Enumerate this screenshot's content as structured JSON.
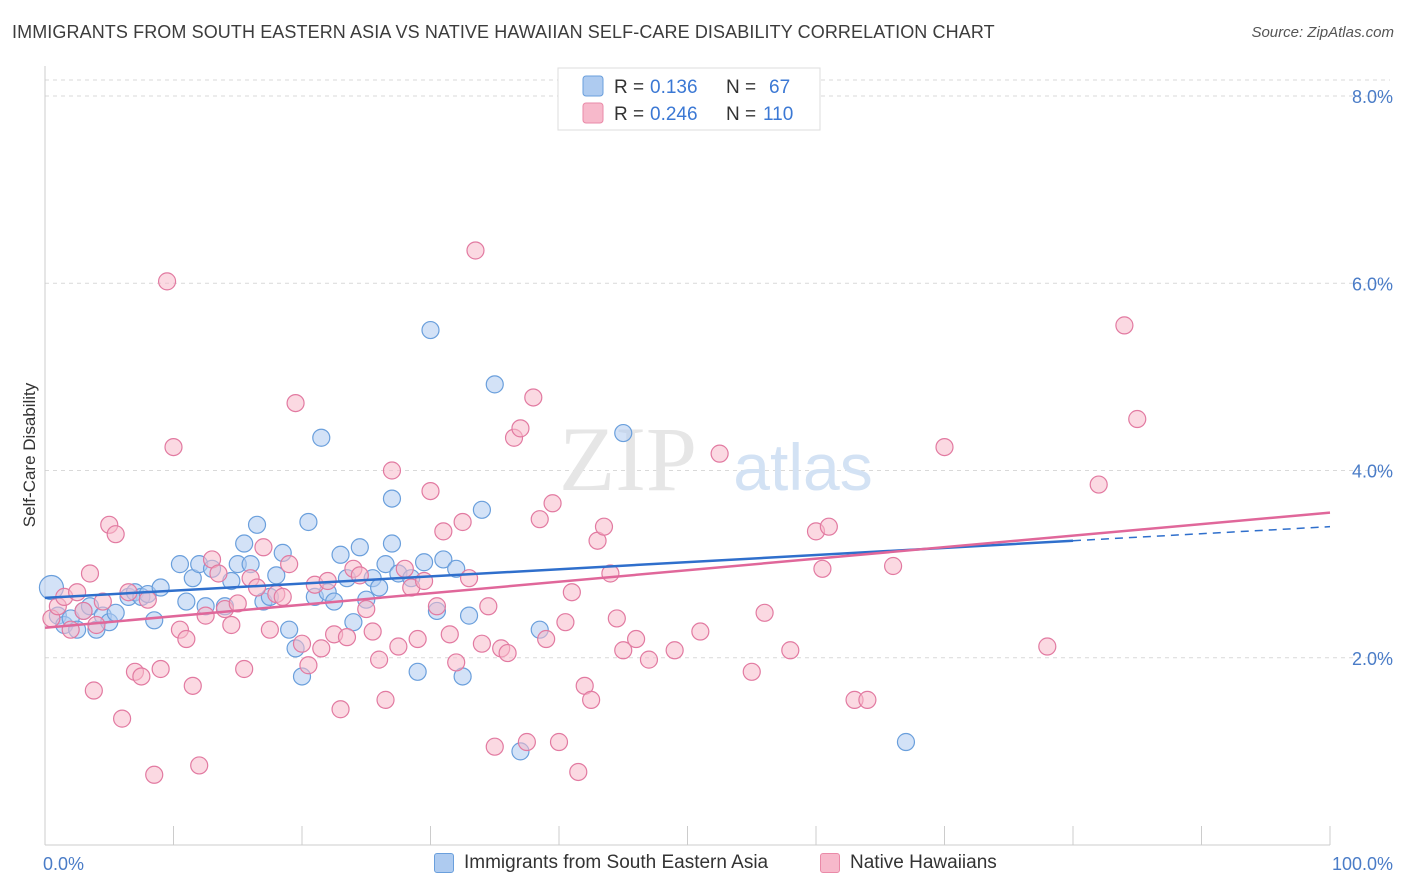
{
  "title": "IMMIGRANTS FROM SOUTH EASTERN ASIA VS NATIVE HAWAIIAN SELF-CARE DISABILITY CORRELATION CHART",
  "source": "Source: ZipAtlas.com",
  "watermark": {
    "zip": "ZIP",
    "atlas": "atlas"
  },
  "legend_top": [
    {
      "r_label": "R =",
      "r_value": "0.136",
      "n_label": "N =",
      "n_value": "67",
      "fill": "#aecbf0",
      "stroke": "#6a9fdc"
    },
    {
      "r_label": "R =",
      "r_value": "0.246",
      "n_label": "N =",
      "n_value": "110",
      "fill": "#f7b9cb",
      "stroke": "#ea8aa8"
    }
  ],
  "legend_bottom": [
    {
      "label": "Immigrants from South Eastern Asia",
      "fill": "#aecbf0",
      "stroke": "#6a9fdc"
    },
    {
      "label": "Native Hawaiians",
      "fill": "#f7b9cb",
      "stroke": "#ea8aa8"
    }
  ],
  "chart_data": {
    "type": "scatter",
    "title": "IMMIGRANTS FROM SOUTH EASTERN ASIA VS NATIVE HAWAIIAN SELF-CARE DISABILITY CORRELATION CHART",
    "xlabel": "",
    "ylabel": "Self-Care Disability",
    "xlim": [
      0,
      100
    ],
    "ylim": [
      0,
      8.0
    ],
    "x_tick_labels": [
      "0.0%",
      "100.0%"
    ],
    "y_ticks": [
      2.0,
      4.0,
      6.0,
      8.0
    ],
    "y_tick_labels": [
      "2.0%",
      "4.0%",
      "6.0%",
      "8.0%"
    ],
    "grid": true,
    "legend_position": "top-center",
    "series": [
      {
        "name": "Immigrants from South Eastern Asia",
        "color": "#6a9fdc",
        "fill": "#aecbf0",
        "trend": {
          "x0": 0,
          "y0": 2.64,
          "x1": 80,
          "y1": 3.25,
          "dash_to_x": 100,
          "dash_to_y": 3.4
        },
        "points": [
          [
            0.5,
            2.75
          ],
          [
            1.0,
            2.45
          ],
          [
            1.5,
            2.35
          ],
          [
            2.0,
            2.42
          ],
          [
            2.5,
            2.3
          ],
          [
            3.0,
            2.5
          ],
          [
            3.5,
            2.55
          ],
          [
            4.0,
            2.3
          ],
          [
            4.5,
            2.45
          ],
          [
            5.0,
            2.38
          ],
          [
            5.5,
            2.48
          ],
          [
            6.5,
            2.65
          ],
          [
            7.0,
            2.7
          ],
          [
            7.5,
            2.65
          ],
          [
            8.0,
            2.68
          ],
          [
            8.5,
            2.4
          ],
          [
            9.0,
            2.75
          ],
          [
            10.5,
            3.0
          ],
          [
            11.0,
            2.6
          ],
          [
            11.5,
            2.85
          ],
          [
            12.0,
            3.0
          ],
          [
            12.5,
            2.55
          ],
          [
            13.0,
            2.95
          ],
          [
            14.0,
            2.55
          ],
          [
            14.5,
            2.82
          ],
          [
            15.0,
            3.0
          ],
          [
            15.5,
            3.22
          ],
          [
            16.0,
            3.0
          ],
          [
            16.5,
            3.42
          ],
          [
            17.0,
            2.6
          ],
          [
            17.5,
            2.65
          ],
          [
            18.0,
            2.88
          ],
          [
            18.5,
            3.12
          ],
          [
            19.0,
            2.3
          ],
          [
            19.5,
            2.1
          ],
          [
            20.0,
            1.8
          ],
          [
            20.5,
            3.45
          ],
          [
            21.0,
            2.65
          ],
          [
            21.5,
            4.35
          ],
          [
            22.0,
            2.7
          ],
          [
            22.5,
            2.6
          ],
          [
            23.0,
            3.1
          ],
          [
            23.5,
            2.85
          ],
          [
            24.0,
            2.38
          ],
          [
            24.5,
            3.18
          ],
          [
            25.0,
            2.62
          ],
          [
            25.5,
            2.85
          ],
          [
            26.0,
            2.75
          ],
          [
            26.5,
            3.0
          ],
          [
            27.0,
            3.22
          ],
          [
            27.5,
            2.9
          ],
          [
            27.0,
            3.7
          ],
          [
            28.5,
            2.85
          ],
          [
            29.0,
            1.85
          ],
          [
            29.5,
            3.02
          ],
          [
            30.0,
            5.5
          ],
          [
            30.5,
            2.5
          ],
          [
            31.0,
            3.05
          ],
          [
            32.0,
            2.95
          ],
          [
            32.5,
            1.8
          ],
          [
            33.0,
            2.45
          ],
          [
            34.0,
            3.58
          ],
          [
            35.0,
            4.92
          ],
          [
            37.0,
            1.0
          ],
          [
            45.0,
            4.4
          ],
          [
            67.0,
            1.1
          ],
          [
            38.5,
            2.3
          ]
        ]
      },
      {
        "name": "Native Hawaiians",
        "color": "#e27aa1",
        "fill": "#f7b9cb",
        "trend": {
          "x0": 0,
          "y0": 2.32,
          "x1": 100,
          "y1": 3.55
        },
        "points": [
          [
            0.5,
            2.42
          ],
          [
            1.0,
            2.55
          ],
          [
            1.5,
            2.65
          ],
          [
            2.0,
            2.3
          ],
          [
            2.5,
            2.7
          ],
          [
            3.0,
            2.5
          ],
          [
            3.5,
            2.9
          ],
          [
            3.8,
            1.65
          ],
          [
            4.0,
            2.35
          ],
          [
            4.5,
            2.6
          ],
          [
            5.0,
            3.42
          ],
          [
            5.5,
            3.32
          ],
          [
            6.0,
            1.35
          ],
          [
            6.5,
            2.7
          ],
          [
            7.0,
            1.85
          ],
          [
            7.5,
            1.8
          ],
          [
            8.0,
            2.62
          ],
          [
            8.5,
            0.75
          ],
          [
            9.0,
            1.88
          ],
          [
            9.5,
            6.02
          ],
          [
            10.0,
            4.25
          ],
          [
            10.5,
            2.3
          ],
          [
            11.0,
            2.2
          ],
          [
            11.5,
            1.7
          ],
          [
            12.0,
            0.85
          ],
          [
            12.5,
            2.45
          ],
          [
            13.0,
            3.05
          ],
          [
            13.5,
            2.9
          ],
          [
            14.0,
            2.52
          ],
          [
            14.5,
            2.35
          ],
          [
            15.0,
            2.58
          ],
          [
            15.5,
            1.88
          ],
          [
            16.0,
            2.85
          ],
          [
            16.5,
            2.75
          ],
          [
            17.0,
            3.18
          ],
          [
            17.5,
            2.3
          ],
          [
            18.0,
            2.68
          ],
          [
            18.5,
            2.65
          ],
          [
            19.0,
            3.0
          ],
          [
            19.5,
            4.72
          ],
          [
            20.0,
            2.15
          ],
          [
            20.5,
            1.92
          ],
          [
            21.0,
            2.78
          ],
          [
            21.5,
            2.1
          ],
          [
            22.0,
            2.82
          ],
          [
            22.5,
            2.25
          ],
          [
            23.0,
            1.45
          ],
          [
            23.5,
            2.22
          ],
          [
            24.0,
            2.95
          ],
          [
            24.5,
            2.88
          ],
          [
            25.0,
            2.52
          ],
          [
            25.5,
            2.28
          ],
          [
            26.0,
            1.98
          ],
          [
            26.5,
            1.55
          ],
          [
            27.0,
            4.0
          ],
          [
            27.5,
            2.12
          ],
          [
            28.0,
            2.95
          ],
          [
            28.5,
            2.75
          ],
          [
            29.0,
            2.2
          ],
          [
            29.5,
            2.82
          ],
          [
            30.0,
            3.78
          ],
          [
            30.5,
            2.55
          ],
          [
            31.0,
            3.35
          ],
          [
            31.5,
            2.25
          ],
          [
            32.0,
            1.95
          ],
          [
            32.5,
            3.45
          ],
          [
            33.0,
            2.85
          ],
          [
            33.5,
            6.35
          ],
          [
            34.0,
            2.15
          ],
          [
            34.5,
            2.55
          ],
          [
            35.0,
            1.05
          ],
          [
            35.5,
            2.1
          ],
          [
            36.0,
            2.05
          ],
          [
            36.5,
            4.35
          ],
          [
            37.0,
            4.45
          ],
          [
            37.5,
            1.1
          ],
          [
            38.0,
            4.78
          ],
          [
            38.5,
            3.48
          ],
          [
            39.0,
            2.2
          ],
          [
            39.5,
            3.65
          ],
          [
            40.0,
            1.1
          ],
          [
            40.5,
            2.38
          ],
          [
            41.0,
            2.7
          ],
          [
            41.5,
            0.78
          ],
          [
            42.0,
            1.7
          ],
          [
            42.5,
            1.55
          ],
          [
            43.0,
            3.25
          ],
          [
            43.5,
            3.4
          ],
          [
            44.0,
            2.9
          ],
          [
            44.5,
            2.42
          ],
          [
            45.0,
            2.08
          ],
          [
            46.0,
            2.2
          ],
          [
            47.0,
            1.98
          ],
          [
            49.0,
            2.08
          ],
          [
            51.0,
            2.28
          ],
          [
            52.5,
            4.18
          ],
          [
            55.0,
            1.85
          ],
          [
            56.0,
            2.48
          ],
          [
            58.0,
            2.08
          ],
          [
            60.0,
            3.35
          ],
          [
            60.5,
            2.95
          ],
          [
            61.0,
            3.4
          ],
          [
            63.0,
            1.55
          ],
          [
            64.0,
            1.55
          ],
          [
            66.0,
            2.98
          ],
          [
            70.0,
            4.25
          ],
          [
            78.0,
            2.12
          ],
          [
            82.0,
            3.85
          ],
          [
            84.0,
            5.55
          ],
          [
            85.0,
            4.55
          ]
        ]
      }
    ]
  }
}
